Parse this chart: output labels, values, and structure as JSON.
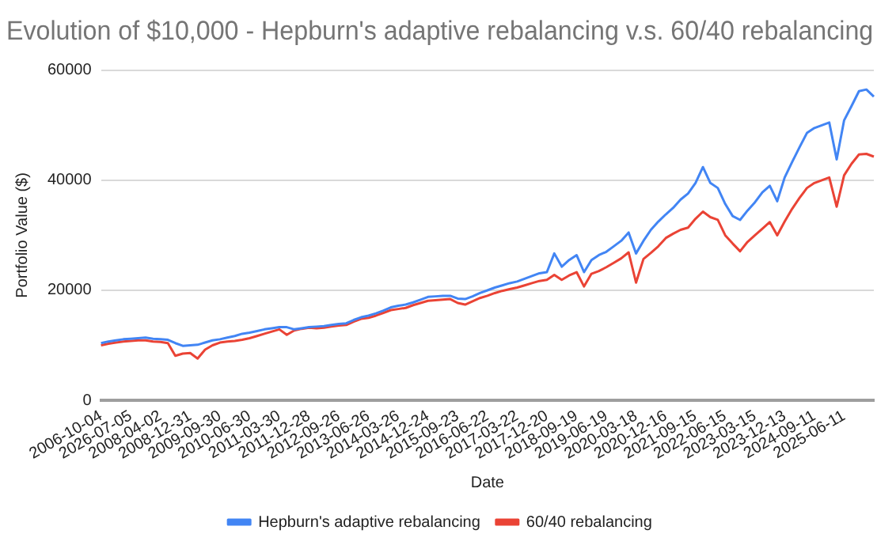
{
  "chart_data": {
    "type": "line",
    "title": "Evolution of $10,000 - Hepburn's adaptive rebalancing v.s. 60/40 rebalancing",
    "xlabel": "Date",
    "ylabel": "Portfolio Value ($)",
    "categories": [
      "2006-10-04",
      null,
      null,
      null,
      "2026-07-05",
      null,
      null,
      null,
      "2008-04-02",
      null,
      null,
      null,
      "2008-12-31",
      null,
      null,
      null,
      "2009-09-30",
      null,
      null,
      null,
      "2010-06-30",
      null,
      null,
      null,
      "2011-03-30",
      null,
      null,
      null,
      "2011-12-28",
      null,
      null,
      null,
      "2012-09-26",
      null,
      null,
      null,
      "2013-06-26",
      null,
      null,
      null,
      "2014-03-26",
      null,
      null,
      null,
      "2014-12-24",
      null,
      null,
      null,
      "2015-09-23",
      null,
      null,
      null,
      "2016-06-22",
      null,
      null,
      null,
      "2017-03-22",
      null,
      null,
      null,
      "2017-12-20",
      null,
      null,
      null,
      "2018-09-19",
      null,
      null,
      null,
      "2019-06-19",
      null,
      null,
      null,
      "2020-03-18",
      null,
      null,
      null,
      "2020-12-16",
      null,
      null,
      null,
      "2021-09-15",
      null,
      null,
      null,
      "2022-06-15",
      null,
      null,
      null,
      "2023-03-15",
      null,
      null,
      null,
      "2023-12-13",
      null,
      null,
      null,
      "2024-09-11",
      null,
      null,
      null,
      "2025-06-11",
      null,
      null,
      null,
      null
    ],
    "series": [
      {
        "name": "Hepburn's adaptive rebalancing",
        "color": "#4285f4",
        "values": [
          10400,
          10700,
          10900,
          11100,
          11200,
          11300,
          11400,
          11200,
          11100,
          11000,
          10400,
          9900,
          10000,
          10100,
          10500,
          10900,
          11100,
          11400,
          11700,
          12100,
          12300,
          12600,
          12900,
          13100,
          13300,
          13300,
          12900,
          13100,
          13300,
          13400,
          13500,
          13700,
          13900,
          14000,
          14600,
          15100,
          15400,
          15800,
          16300,
          16900,
          17200,
          17400,
          17800,
          18300,
          18800,
          18900,
          19000,
          19000,
          18500,
          18400,
          18900,
          19500,
          20000,
          20500,
          20900,
          21300,
          21600,
          22100,
          22600,
          23100,
          23300,
          26700,
          24300,
          25500,
          26400,
          23300,
          25500,
          26400,
          27000,
          28000,
          29000,
          30500,
          26700,
          29000,
          31000,
          32500,
          33800,
          35000,
          36500,
          37600,
          39500,
          42400,
          39500,
          38600,
          35700,
          33500,
          32800,
          34500,
          36000,
          37800,
          39000,
          36200,
          40500,
          43300,
          46000,
          48600,
          49500,
          50000,
          50500,
          43800,
          50900,
          53500,
          56200,
          56500,
          55200
        ]
      },
      {
        "name": "60/40 rebalancing",
        "color": "#ea4335",
        "values": [
          10000,
          10300,
          10500,
          10700,
          10800,
          10900,
          10900,
          10700,
          10600,
          10400,
          8100,
          8500,
          8600,
          7600,
          9200,
          10000,
          10500,
          10700,
          10800,
          11000,
          11300,
          11700,
          12100,
          12500,
          12900,
          11900,
          12700,
          13000,
          13200,
          13100,
          13200,
          13400,
          13600,
          13700,
          14300,
          14800,
          15000,
          15400,
          15900,
          16400,
          16600,
          16800,
          17300,
          17700,
          18100,
          18200,
          18300,
          18400,
          17700,
          17400,
          18000,
          18600,
          19000,
          19500,
          19900,
          20200,
          20500,
          20900,
          21300,
          21700,
          21900,
          22800,
          21900,
          22700,
          23300,
          20700,
          23000,
          23500,
          24200,
          25000,
          25800,
          26900,
          21400,
          25700,
          26800,
          28000,
          29500,
          30300,
          31000,
          31400,
          33000,
          34300,
          33300,
          32800,
          30000,
          28500,
          27100,
          28800,
          30000,
          31200,
          32400,
          30000,
          32500,
          34800,
          36800,
          38600,
          39500,
          40000,
          40500,
          35200,
          40900,
          43000,
          44700,
          44800,
          44300
        ]
      }
    ],
    "ylim": [
      0,
      60000
    ],
    "yticks": [
      0,
      20000,
      40000,
      60000
    ],
    "grid": "y",
    "legend": "bottom",
    "marker": "none",
    "line_style": "solid"
  }
}
